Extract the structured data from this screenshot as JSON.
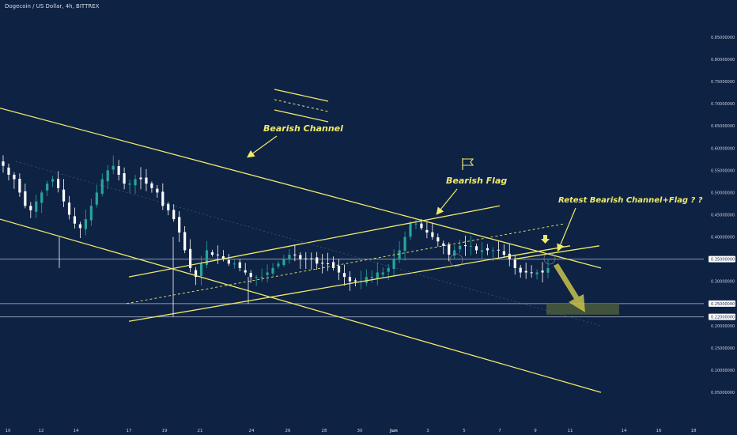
{
  "header": {
    "title": "Dogecoin / US Dollar, 4h, BITTREX"
  },
  "annotations": {
    "bearish_channel": "Bearish Channel",
    "bearish_flag": "Bearish Flag",
    "retest": "Retest Bearish Channel+Flag ? ?"
  },
  "colors": {
    "background": "#0e2244",
    "up_candle": "#26a69a",
    "down_candle": "#ffffff",
    "trendline": "#f0ea6a",
    "support_line": "#b8c2d6",
    "target_zone": "#4a5b3c"
  },
  "chart_data": {
    "type": "candlestick",
    "title": "Dogecoin / US Dollar, 4h, BITTREX",
    "xlabel": "",
    "ylabel": "",
    "x_ticks": [
      "10",
      "12",
      "14",
      "17",
      "19",
      "21",
      "24",
      "26",
      "28",
      "30",
      "Jun",
      "3",
      "5",
      "7",
      "9",
      "11",
      "14",
      "16",
      "18"
    ],
    "y_ticks": [
      0.85,
      0.8,
      0.75,
      0.7,
      0.65,
      0.6,
      0.55,
      0.5,
      0.45,
      0.4,
      0.3,
      0.2,
      0.15,
      0.1,
      0.05
    ],
    "y_tick_labels": [
      "0.85000000",
      "0.80000000",
      "0.75000000",
      "0.70000000",
      "0.65000000",
      "0.60000000",
      "0.55000000",
      "0.50000000",
      "0.45000000",
      "0.40000000",
      "0.30000000",
      "0.20000000",
      "0.15000000",
      "0.10000000",
      "0.05000000"
    ],
    "ylim": [
      0.02,
      0.88
    ],
    "price_tags": [
      {
        "value": 0.35,
        "label": "0.35000000"
      },
      {
        "value": 0.25,
        "label": "0.25000000"
      },
      {
        "value": 0.22,
        "label": "0.22000000"
      }
    ],
    "horizontal_levels": [
      0.35,
      0.25,
      0.22
    ],
    "series": [
      {
        "type": "candlestick",
        "close_path": [
          0.56,
          0.54,
          0.53,
          0.5,
          0.47,
          0.46,
          0.48,
          0.5,
          0.52,
          0.53,
          0.51,
          0.48,
          0.45,
          0.43,
          0.42,
          0.44,
          0.47,
          0.5,
          0.53,
          0.55,
          0.56,
          0.54,
          0.52,
          0.52,
          0.53,
          0.53,
          0.52,
          0.51,
          0.5,
          0.47,
          0.46,
          0.44,
          0.41,
          0.37,
          0.33,
          0.31,
          0.34,
          0.37,
          0.36,
          0.36,
          0.35,
          0.34,
          0.34,
          0.33,
          0.32,
          0.31,
          0.31,
          0.31,
          0.32,
          0.33,
          0.34,
          0.35,
          0.36,
          0.36,
          0.35,
          0.35,
          0.35,
          0.34,
          0.34,
          0.34,
          0.33,
          0.32,
          0.31,
          0.3,
          0.3,
          0.3,
          0.31,
          0.31,
          0.32,
          0.32,
          0.33,
          0.35,
          0.37,
          0.4,
          0.43,
          0.43,
          0.42,
          0.41,
          0.4,
          0.39,
          0.38,
          0.36,
          0.37,
          0.38,
          0.38,
          0.38,
          0.37,
          0.37,
          0.37,
          0.37,
          0.37,
          0.36,
          0.35,
          0.33,
          0.32,
          0.32,
          0.32,
          0.32,
          0.32,
          0.33
        ]
      }
    ],
    "trendlines": [
      {
        "name": "Bearish Channel upper",
        "from": [
          "start",
          0.69
        ],
        "to": [
          "after 14",
          0.33
        ]
      },
      {
        "name": "Bearish Channel lower",
        "from": [
          "start",
          0.44
        ],
        "to": [
          "after 14",
          0.05
        ]
      },
      {
        "name": "Bearish Flag upper",
        "from": [
          "17",
          0.31
        ],
        "to": [
          "7",
          0.47
        ]
      },
      {
        "name": "Bearish Flag lower",
        "from": [
          "17",
          0.21
        ],
        "to": [
          "11",
          0.38
        ]
      }
    ],
    "target_zone": {
      "from": "9",
      "to": "14",
      "top": 0.25,
      "bottom": 0.225
    },
    "grid": false,
    "legend": "none"
  }
}
